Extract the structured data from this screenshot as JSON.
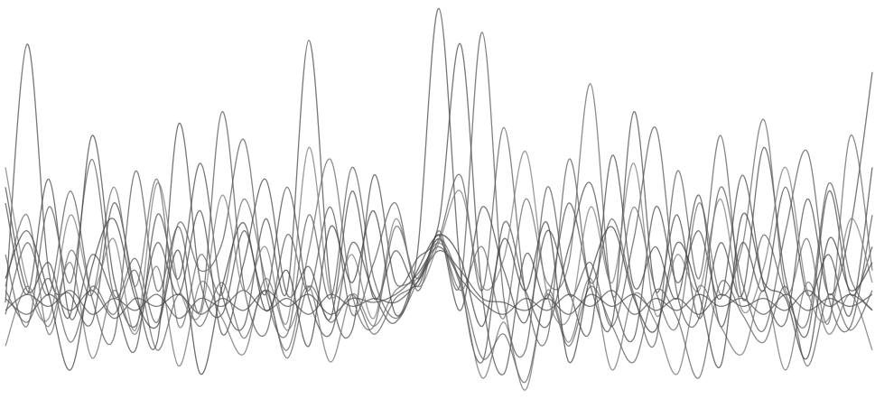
{
  "chart_data": {
    "type": "line",
    "grid": false,
    "x": [
      0,
      1,
      2,
      3,
      4,
      5,
      6,
      7,
      8,
      9,
      10,
      11,
      12,
      13,
      14,
      15,
      16,
      17,
      18,
      19,
      20,
      21,
      22,
      23,
      24,
      25,
      26,
      27,
      28,
      29,
      30,
      31,
      32,
      33,
      34,
      35,
      36,
      37,
      38,
      39,
      40
    ],
    "xlim": [
      0,
      40
    ],
    "ylim": [
      -2.5,
      7.5
    ],
    "series": [
      {
        "color": "#4a4a4a",
        "values": [
          0,
          6.5,
          0.8,
          0.2,
          -0.5,
          2.5,
          0.3,
          -1,
          4.5,
          0.5,
          -0.3,
          1.8,
          0.2,
          2.9,
          0.1,
          -0.8,
          1.5,
          0.2,
          -0.5,
          1.2,
          7.4,
          0.8,
          -1.5,
          2.0,
          0.3,
          -0.6,
          1.4,
          3.0,
          0.2,
          -0.9,
          2.4,
          0.5,
          1.8,
          0.1,
          3.2,
          0.4,
          -0.5,
          2.6,
          0.2,
          1.9,
          5.8
        ]
      },
      {
        "color": "#4a4a4a",
        "values": [
          2.5,
          0.2,
          3.1,
          -0.4,
          1.2,
          0.1,
          -1.2,
          2.2,
          0.6,
          3.5,
          0.2,
          -0.6,
          2.1,
          0.3,
          6.6,
          0.4,
          -0.7,
          3.2,
          0.5,
          1.1,
          2.0,
          6.5,
          0.2,
          -1.8,
          1.2,
          0.1,
          2.5,
          0.4,
          -0.5,
          4.8,
          0.3,
          2.2,
          -0.4,
          1.5,
          0.2,
          3.9,
          0.6,
          -0.8,
          2.8,
          0.2,
          1.4
        ]
      },
      {
        "color": "#555555",
        "values": [
          -0.3,
          1.5,
          0.2,
          2.8,
          0.1,
          -0.9,
          3.3,
          0.3,
          1.9,
          -0.2,
          4.8,
          0.4,
          -0.8,
          1.7,
          0.3,
          2.4,
          -0.3,
          1.0,
          2.5,
          0.3,
          1.8,
          0.5,
          6.8,
          0.1,
          -1.2,
          2.9,
          0.2,
          1.0,
          -0.6,
          1.6,
          4.4,
          0.2,
          -0.4,
          2.9,
          0.5,
          -0.7,
          1.8,
          3.8,
          0.1,
          -0.6,
          2.2
        ]
      },
      {
        "color": "#5a5a5a",
        "values": [
          1.2,
          -0.6,
          2.4,
          0.5,
          3.6,
          0.2,
          1.1,
          -0.5,
          2.0,
          0.8,
          1.5,
          4.1,
          0.3,
          -0.8,
          2.2,
          0.1,
          3.4,
          0.6,
          -0.4,
          0.5,
          1.6,
          3.2,
          0.3,
          4.4,
          0.2,
          -0.9,
          3.6,
          0.5,
          2.1,
          0.2,
          -1.0,
          3.3,
          0.6,
          4.2,
          0.1,
          1.7,
          0.2,
          -0.5,
          3.0,
          0.6,
          -0.2
        ]
      },
      {
        "color": "#666666",
        "values": [
          0.4,
          2.2,
          -0.8,
          1.3,
          0.2,
          2.9,
          0.4,
          3.1,
          -0.6,
          1.2,
          0.2,
          2.6,
          0.6,
          -1.2,
          1.3,
          3.6,
          0.2,
          -0.6,
          1.9,
          0.6,
          1.6,
          0.3,
          1.4,
          -0.4,
          2.6,
          0.5,
          1.0,
          5.5,
          0.2,
          2.4,
          0.3,
          -0.6,
          2.5,
          0.2,
          1.4,
          4.6,
          0.3,
          1.6,
          -0.5,
          4.2,
          0.8
        ]
      },
      {
        "color": "#474747",
        "values": [
          2.9,
          0.3,
          1.0,
          -0.3,
          4.2,
          0.6,
          -0.6,
          1.5,
          0.2,
          2.3,
          -0.8,
          1.0,
          3.1,
          0.2,
          0.9,
          -0.4,
          2.8,
          0.1,
          1.3,
          0.4,
          1.7,
          -0.2,
          2.4,
          0.8,
          -0.5,
          1.8,
          0.3,
          -0.7,
          3.7,
          0.4,
          1.4,
          0.1,
          2.7,
          -0.6,
          1.5,
          0.3,
          2.9,
          0.2,
          1.2,
          -0.3,
          3.4
        ]
      },
      {
        "color": "#6e6e6e",
        "values": [
          -1.1,
          0.4,
          -0.6,
          1.0,
          -1.4,
          0.3,
          -0.8,
          0.9,
          -1.6,
          0.5,
          -0.4,
          -1.3,
          0.6,
          -0.7,
          0.4,
          -1.5,
          0.2,
          -0.6,
          0.3,
          0.6,
          1.5,
          0.4,
          -1.9,
          -0.5,
          -2.2,
          0.3,
          -1.0,
          0.6,
          -1.7,
          0.2,
          -0.5,
          -1.8,
          0.4,
          -0.6,
          -1.3,
          0.3,
          -1.7,
          0.5,
          -0.8,
          0.2,
          -1.2
        ]
      },
      {
        "color": "#5c5c5c",
        "values": [
          0.3,
          -0.5,
          0.6,
          -1.0,
          0.4,
          -0.3,
          0.8,
          -1.2,
          0.2,
          -0.6,
          0.5,
          -0.9,
          0.3,
          -1.4,
          0.4,
          -0.5,
          0.2,
          -0.8,
          0.1,
          0.5,
          1.6,
          0.5,
          -1.4,
          -0.8,
          -2.0,
          0.2,
          -1.1,
          0.4,
          -0.6,
          -1.5,
          0.3,
          -0.4,
          -1.9,
          0.5,
          -0.3,
          -1.0,
          0.4,
          -1.6,
          0.2,
          -0.7,
          0.3
        ]
      },
      {
        "color": "#505050",
        "values": [
          0.1,
          -0.3,
          0.2,
          -0.2,
          0.3,
          -0.4,
          0.1,
          -0.1,
          0.2,
          -0.3,
          0.1,
          -0.2,
          0.3,
          -0.1,
          0.2,
          -0.3,
          0.1,
          0.0,
          0.2,
          0.7,
          1.4,
          0.6,
          0.0,
          -0.3,
          0.1,
          -0.2,
          0.2,
          -0.1,
          0.3,
          -0.3,
          0.1,
          -0.2,
          0.2,
          -0.1,
          0.1,
          -0.3,
          0.2,
          -0.2,
          0.1,
          -0.1,
          0.2
        ]
      },
      {
        "color": "#505050",
        "values": [
          -0.2,
          0.2,
          -0.1,
          0.3,
          -0.3,
          0.1,
          -0.2,
          0.2,
          -0.4,
          0.1,
          -0.1,
          0.3,
          -0.2,
          0.1,
          -0.3,
          0.2,
          -0.1,
          0.1,
          0.0,
          0.5,
          1.3,
          0.8,
          0.1,
          0.0,
          -0.2,
          0.1,
          -0.3,
          0.2,
          -0.1,
          0.2,
          -0.2,
          0.1,
          -0.3,
          0.2,
          -0.1,
          0.1,
          -0.2,
          0.3,
          -0.1,
          0.2,
          -0.2
        ]
      },
      {
        "color": "#7a7a7a",
        "values": [
          3.4,
          0.5,
          -0.4,
          2.2,
          0.3,
          1.6,
          -0.7,
          3.0,
          0.4,
          -0.3,
          2.7,
          0.3,
          1.4,
          -0.5,
          3.9,
          0.2,
          1.2,
          -0.4,
          2.1,
          0.4,
          1.5,
          2.8,
          0.4,
          1.1,
          3.8,
          0.2,
          -0.4,
          2.4,
          0.5,
          3.5,
          -0.3,
          1.2,
          0.3,
          2.6,
          -0.2,
          0.9,
          3.4,
          0.3,
          -0.4,
          2.1,
          0.5
        ]
      },
      {
        "color": "#3f3f3f",
        "values": [
          0.6,
          1.8,
          0.2,
          -1.7,
          0.9,
          2.1,
          0.1,
          -0.6,
          1.3,
          -1.8,
          0.4,
          2.0,
          -0.2,
          0.8,
          -1.1,
          1.9,
          0.5,
          2.3,
          -0.3,
          0.8,
          1.7,
          1.1,
          -0.6,
          1.6,
          0.3,
          2.0,
          -1.5,
          0.7,
          1.9,
          0.1,
          -0.7,
          1.5,
          0.2,
          -1.6,
          2.2,
          0.5,
          0.1,
          -1.4,
          1.6,
          0.3,
          1.0
        ]
      }
    ]
  }
}
